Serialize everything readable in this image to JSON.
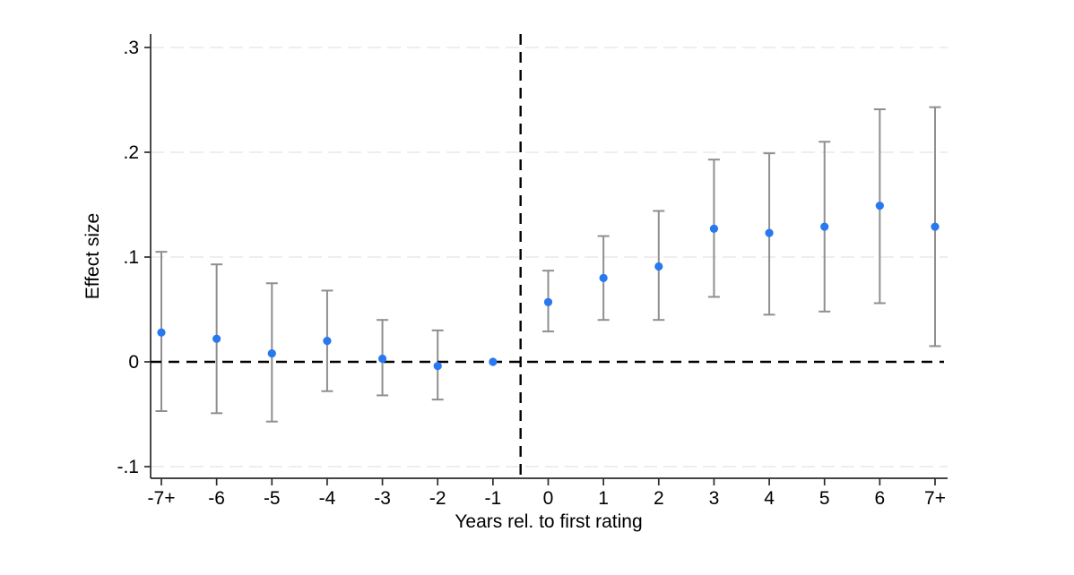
{
  "chart_data": {
    "type": "scatter",
    "subtype": "event-study-coefficient-plot",
    "title": "",
    "xlabel": "Years rel. to first rating",
    "ylabel": "Effect size",
    "categories": [
      "-7+",
      "-6",
      "-5",
      "-4",
      "-3",
      "-2",
      "-1",
      "0",
      "1",
      "2",
      "3",
      "4",
      "5",
      "6",
      "7+"
    ],
    "series": [
      {
        "name": "coefficient",
        "values": [
          0.028,
          0.022,
          0.008,
          0.02,
          0.003,
          -0.004,
          0.0,
          0.057,
          0.08,
          0.091,
          0.127,
          0.123,
          0.129,
          0.149,
          0.129
        ],
        "ci_low": [
          -0.047,
          -0.049,
          -0.057,
          -0.028,
          -0.032,
          -0.036,
          null,
          0.029,
          0.04,
          0.04,
          0.062,
          0.045,
          0.048,
          0.056,
          0.015
        ],
        "ci_high": [
          0.105,
          0.093,
          0.075,
          0.068,
          0.04,
          0.03,
          null,
          0.087,
          0.12,
          0.144,
          0.193,
          0.199,
          0.21,
          0.241,
          0.243
        ]
      }
    ],
    "reference_category": "-1",
    "ylim": [
      -0.111,
      0.313
    ],
    "yticks": [
      {
        "value": -0.1,
        "label": "-.1"
      },
      {
        "value": 0,
        "label": "0"
      },
      {
        "value": 0.1,
        "label": ".1"
      },
      {
        "value": 0.2,
        "label": ".2"
      },
      {
        "value": 0.3,
        "label": ".3"
      }
    ],
    "grid": true,
    "gridline_values": [
      -0.1,
      0.1,
      0.2,
      0.3
    ],
    "legend": "none",
    "reference_lines": {
      "horizontal_y": 0,
      "vertical_between": [
        "-1",
        "0"
      ]
    },
    "colors": {
      "marker": "#2878f0",
      "error_bar": "#8f8f8f",
      "grid": "#e8e8e8",
      "reference_line": "#000000",
      "axis": "#2b2b2b",
      "text": "#000000",
      "background": "#ffffff"
    }
  }
}
